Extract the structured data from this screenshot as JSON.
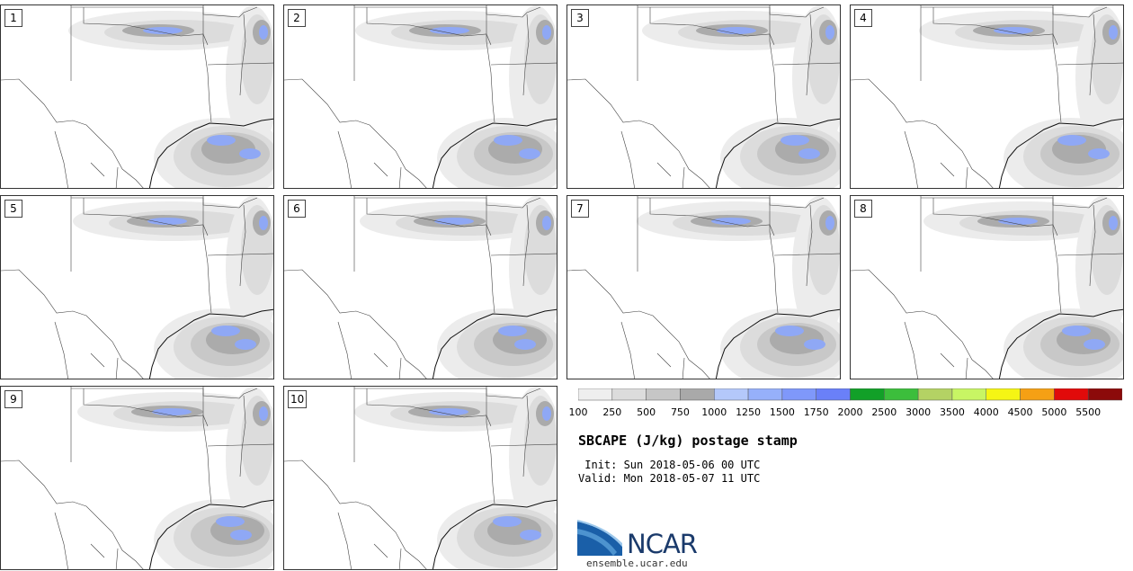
{
  "panels": [
    {
      "label": "1"
    },
    {
      "label": "2"
    },
    {
      "label": "3"
    },
    {
      "label": "4"
    },
    {
      "label": "5"
    },
    {
      "label": "6"
    },
    {
      "label": "7"
    },
    {
      "label": "8"
    },
    {
      "label": "9"
    },
    {
      "label": "10"
    }
  ],
  "colorbar": {
    "ticks": [
      "100",
      "250",
      "500",
      "750",
      "1000",
      "1250",
      "1500",
      "1750",
      "2000",
      "2500",
      "3000",
      "3500",
      "4000",
      "4500",
      "5000",
      "5500"
    ],
    "colors": [
      "#eeeeee",
      "#dcdcdc",
      "#c6c6c6",
      "#a9a9a9",
      "#b4c8fa",
      "#96b0fa",
      "#7f98fa",
      "#6a80f8",
      "#12a028",
      "#3cbe3c",
      "#b4d264",
      "#c8f564",
      "#f5f514",
      "#f5a014",
      "#e10a0a",
      "#8c0a0a"
    ]
  },
  "title": "SBCAPE (J/kg) postage stamp",
  "init": " Init: Sun 2018-05-06 00 UTC",
  "valid": "Valid: Mon 2018-05-07 11 UTC",
  "logo": {
    "text": "NCAR",
    "url": "ensemble.ucar.edu",
    "colors": [
      "#1a5fa8",
      "#5aa0d8",
      "#1a3a6b"
    ]
  }
}
